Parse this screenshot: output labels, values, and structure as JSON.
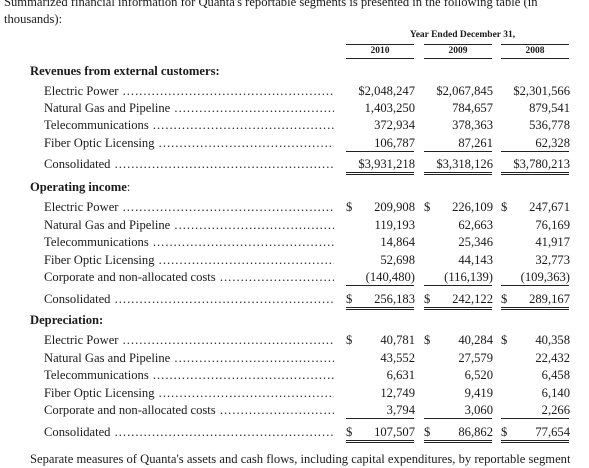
{
  "intro": "Summarized financial information for Quanta's reportable segments is presented in the following table (in thousands):",
  "period_header": "Year Ended December 31,",
  "years": [
    "2010",
    "2009",
    "2008"
  ],
  "sections": [
    {
      "title": "Revenues from external customers:",
      "rows": [
        {
          "label": "Electric Power",
          "values": [
            "$2,048,247",
            "$2,067,845",
            "$2,301,566"
          ]
        },
        {
          "label": "Natural Gas and Pipeline",
          "values": [
            "1,403,250",
            "784,657",
            "879,541"
          ]
        },
        {
          "label": "Telecommunications",
          "values": [
            "372,934",
            "378,363",
            "536,778"
          ]
        },
        {
          "label": "Fiber Optic Licensing",
          "values": [
            "106,787",
            "87,261",
            "62,328"
          ]
        },
        {
          "label": "Consolidated",
          "values": [
            "$3,931,218",
            "$3,318,126",
            "$3,780,213"
          ]
        }
      ]
    },
    {
      "title": "Operating income",
      "title_suffix": ":",
      "rows": [
        {
          "label": "Electric Power",
          "values": [
            "209,908",
            "226,109",
            "247,671"
          ],
          "dollar": true
        },
        {
          "label": "Natural Gas and Pipeline",
          "values": [
            "119,193",
            "62,663",
            "76,169"
          ]
        },
        {
          "label": "Telecommunications",
          "values": [
            "14,864",
            "25,346",
            "41,917"
          ]
        },
        {
          "label": "Fiber Optic Licensing",
          "values": [
            "52,698",
            "44,143",
            "32,773"
          ]
        },
        {
          "label": "Corporate and non-allocated costs",
          "values": [
            "(140,480)",
            "(116,139)",
            "(109,363)"
          ]
        },
        {
          "label": "Consolidated",
          "values": [
            "256,183",
            "242,122",
            "289,167"
          ],
          "dollar": true
        }
      ]
    },
    {
      "title": "Depreciation:",
      "rows": [
        {
          "label": "Electric Power",
          "values": [
            "40,781",
            "40,284",
            "40,358"
          ],
          "dollar": true
        },
        {
          "label": "Natural Gas and Pipeline",
          "values": [
            "43,552",
            "27,579",
            "22,432"
          ]
        },
        {
          "label": "Telecommunications",
          "values": [
            "6,631",
            "6,520",
            "6,458"
          ]
        },
        {
          "label": "Fiber Optic Licensing",
          "values": [
            "12,749",
            "9,419",
            "6,140"
          ]
        },
        {
          "label": "Corporate and non-allocated costs",
          "values": [
            "3,794",
            "3,060",
            "2,266"
          ]
        },
        {
          "label": "Consolidated",
          "values": [
            "107,507",
            "86,862",
            "77,654"
          ],
          "dollar": true
        }
      ]
    }
  ],
  "dollar_sign": "$",
  "outro": "Separate measures of Quanta's assets and cash flows, including capital expenditures, by reportable segment"
}
